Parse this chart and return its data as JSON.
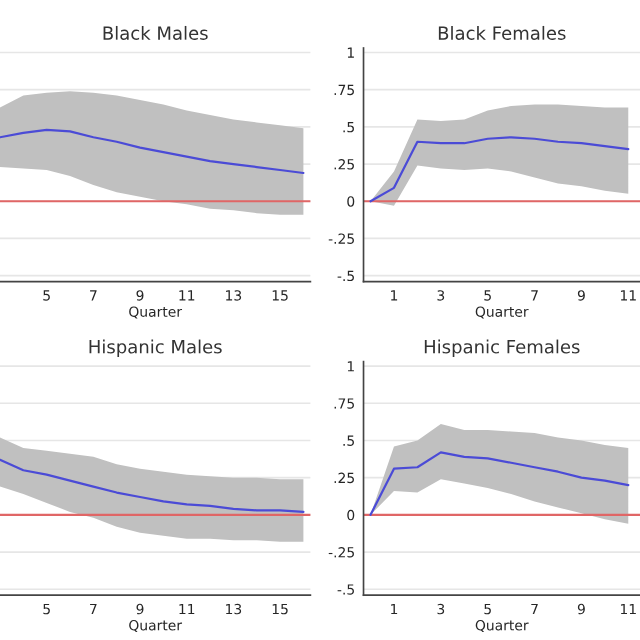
{
  "chart_data": [
    {
      "type": "line",
      "title": "Black Males",
      "xlabel": "Quarter",
      "xlim": [
        3,
        16.3
      ],
      "xticks": [
        5,
        7,
        9,
        11,
        13,
        15
      ],
      "ylim": [
        -0.54,
        1.03
      ],
      "yticks": [
        1,
        0.75,
        0.5,
        0.25,
        0,
        -0.25,
        -0.5
      ],
      "grid": "y",
      "tick_labels": "x",
      "ref_lines": [
        {
          "axis": "y",
          "value": 0,
          "color": "#e06666"
        }
      ],
      "series": [
        {
          "color": "#4b4bd6",
          "x": [
            3,
            4,
            5,
            6,
            7,
            8,
            9,
            10,
            11,
            12,
            13,
            14,
            15,
            16
          ],
          "values": [
            0.43,
            0.46,
            0.48,
            0.47,
            0.43,
            0.4,
            0.36,
            0.33,
            0.3,
            0.27,
            0.25,
            0.23,
            0.21,
            0.19
          ],
          "lower": [
            0.23,
            0.22,
            0.21,
            0.17,
            0.11,
            0.06,
            0.03,
            0,
            -0.02,
            -0.05,
            -0.06,
            -0.08,
            -0.09,
            -0.09
          ],
          "upper": [
            0.63,
            0.71,
            0.73,
            0.74,
            0.73,
            0.71,
            0.68,
            0.65,
            0.61,
            0.58,
            0.55,
            0.53,
            0.51,
            0.49
          ]
        }
      ]
    },
    {
      "type": "line",
      "title": "Black Females",
      "xlabel": "Quarter",
      "xlim": [
        -0.3,
        11.5
      ],
      "xticks": [
        1,
        3,
        5,
        7,
        9,
        11
      ],
      "ylim": [
        -0.54,
        1.03
      ],
      "yticks": [
        {
          "value": 1,
          "label": "1"
        },
        {
          "value": 0.75,
          "label": ".75"
        },
        {
          "value": 0.5,
          "label": ".5"
        },
        {
          "value": 0.25,
          "label": ".25"
        },
        {
          "value": 0,
          "label": "0"
        },
        {
          "value": -0.25,
          "label": "-.25"
        },
        {
          "value": -0.5,
          "label": "-.5"
        }
      ],
      "grid": "y",
      "ref_lines": [
        {
          "axis": "y",
          "value": 0,
          "color": "#e06666"
        }
      ],
      "series": [
        {
          "color": "#4b4bd6",
          "x": [
            0,
            1,
            2,
            3,
            4,
            5,
            6,
            7,
            8,
            9,
            10,
            11
          ],
          "values": [
            0,
            0.09,
            0.4,
            0.39,
            0.39,
            0.42,
            0.43,
            0.42,
            0.4,
            0.39,
            0.37,
            0.35
          ],
          "lower": [
            0,
            -0.03,
            0.24,
            0.22,
            0.21,
            0.22,
            0.2,
            0.16,
            0.12,
            0.1,
            0.07,
            0.05
          ],
          "upper": [
            0,
            0.2,
            0.55,
            0.54,
            0.55,
            0.61,
            0.64,
            0.65,
            0.65,
            0.64,
            0.63,
            0.63
          ]
        }
      ]
    },
    {
      "type": "line",
      "title": "Hispanic Males",
      "xlabel": "Quarter",
      "xlim": [
        3,
        16.3
      ],
      "xticks": [
        5,
        7,
        9,
        11,
        13,
        15
      ],
      "ylim": [
        -0.54,
        1.03
      ],
      "yticks": [
        1,
        0.75,
        0.5,
        0.25,
        0,
        -0.25,
        -0.5
      ],
      "grid": "y",
      "tick_labels": "x",
      "ref_lines": [
        {
          "axis": "y",
          "value": 0,
          "color": "#e06666"
        }
      ],
      "series": [
        {
          "color": "#4b4bd6",
          "x": [
            3,
            4,
            5,
            6,
            7,
            8,
            9,
            10,
            11,
            12,
            13,
            14,
            15,
            16
          ],
          "values": [
            0.37,
            0.3,
            0.27,
            0.23,
            0.19,
            0.15,
            0.12,
            0.09,
            0.07,
            0.06,
            0.04,
            0.03,
            0.03,
            0.02
          ],
          "lower": [
            0.19,
            0.14,
            0.08,
            0.02,
            -0.02,
            -0.08,
            -0.12,
            -0.14,
            -0.16,
            -0.16,
            -0.17,
            -0.17,
            -0.18,
            -0.18
          ],
          "upper": [
            0.52,
            0.45,
            0.43,
            0.41,
            0.39,
            0.34,
            0.31,
            0.29,
            0.27,
            0.26,
            0.25,
            0.25,
            0.24,
            0.24
          ]
        }
      ]
    },
    {
      "type": "line",
      "title": "Hispanic Females",
      "xlabel": "Quarter",
      "xlim": [
        -0.3,
        11.5
      ],
      "xticks": [
        1,
        3,
        5,
        7,
        9,
        11
      ],
      "ylim": [
        -0.54,
        1.03
      ],
      "yticks": [
        {
          "value": 1,
          "label": "1"
        },
        {
          "value": 0.75,
          "label": ".75"
        },
        {
          "value": 0.5,
          "label": ".5"
        },
        {
          "value": 0.25,
          "label": ".25"
        },
        {
          "value": 0,
          "label": "0"
        },
        {
          "value": -0.25,
          "label": "-.25"
        },
        {
          "value": -0.5,
          "label": "-.5"
        }
      ],
      "grid": "y",
      "ref_lines": [
        {
          "axis": "y",
          "value": 0,
          "color": "#e06666"
        }
      ],
      "series": [
        {
          "color": "#4b4bd6",
          "x": [
            0,
            1,
            2,
            3,
            4,
            5,
            6,
            7,
            8,
            9,
            10,
            11
          ],
          "values": [
            0,
            0.31,
            0.32,
            0.42,
            0.39,
            0.38,
            0.35,
            0.32,
            0.29,
            0.25,
            0.23,
            0.2
          ],
          "lower": [
            0,
            0.16,
            0.15,
            0.24,
            0.21,
            0.18,
            0.14,
            0.09,
            0.05,
            0.01,
            -0.03,
            -0.06
          ],
          "upper": [
            0,
            0.46,
            0.5,
            0.61,
            0.57,
            0.57,
            0.56,
            0.55,
            0.52,
            0.5,
            0.47,
            0.45
          ]
        }
      ]
    }
  ]
}
